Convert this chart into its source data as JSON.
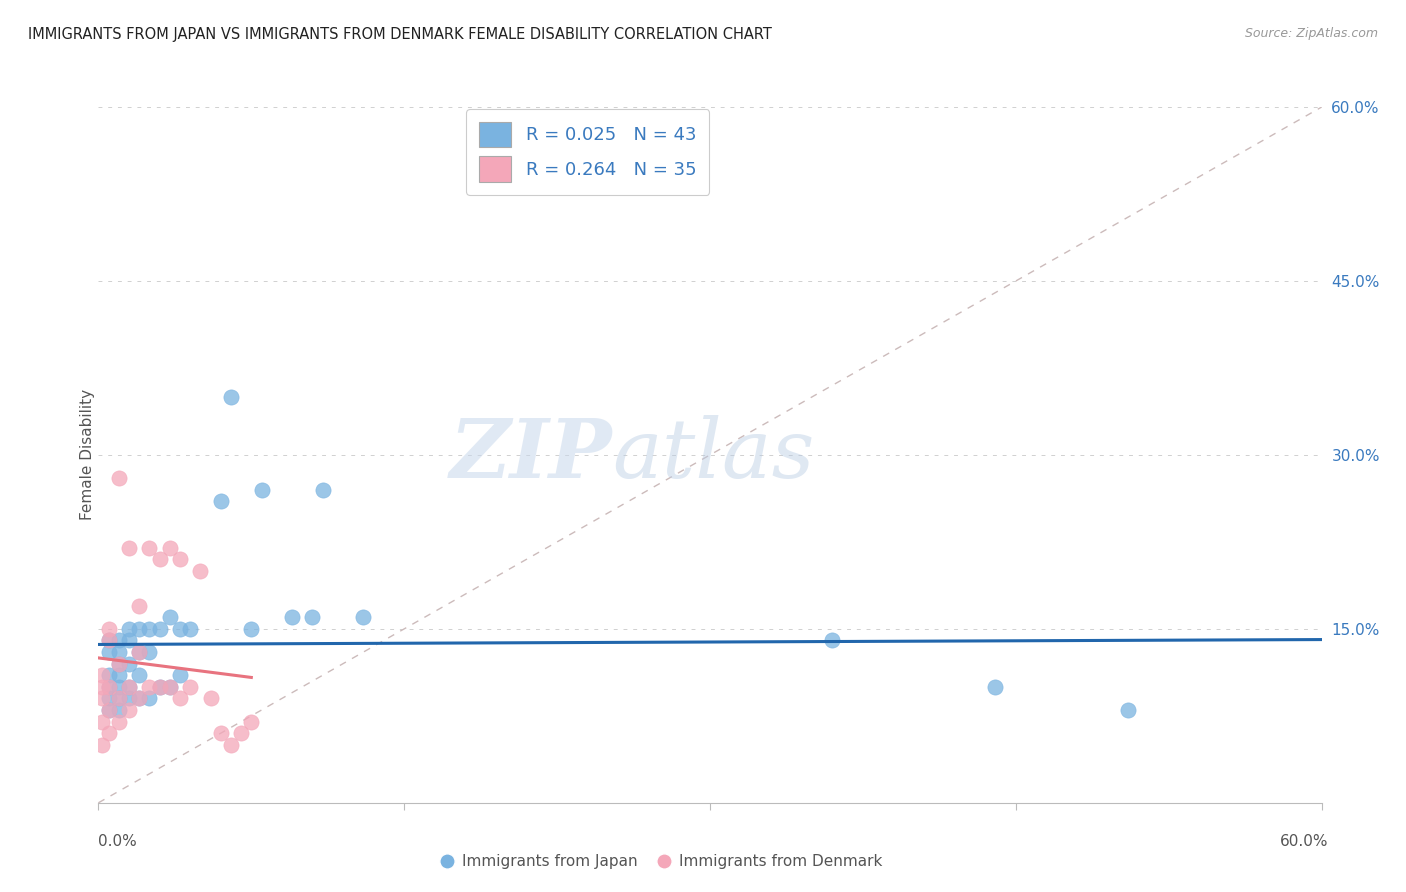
{
  "title": "IMMIGRANTS FROM JAPAN VS IMMIGRANTS FROM DENMARK FEMALE DISABILITY CORRELATION CHART",
  "source": "Source: ZipAtlas.com",
  "ylabel": "Female Disability",
  "xlim": [
    0,
    0.6
  ],
  "ylim": [
    0,
    0.6
  ],
  "yticks": [
    0.15,
    0.3,
    0.45,
    0.6
  ],
  "ytick_labels": [
    "15.0%",
    "30.0%",
    "45.0%",
    "60.0%"
  ],
  "japan_R": 0.025,
  "japan_N": 43,
  "denmark_R": 0.264,
  "denmark_N": 35,
  "japan_color": "#7ab3e0",
  "denmark_color": "#f4a7b9",
  "japan_line_color": "#2166ac",
  "denmark_line_color": "#e8737f",
  "diag_color": "#ccbbbb",
  "watermark_zip": "ZIP",
  "watermark_atlas": "atlas",
  "japan_x": [
    0.005,
    0.005,
    0.005,
    0.005,
    0.005,
    0.005,
    0.01,
    0.01,
    0.01,
    0.01,
    0.01,
    0.01,
    0.01,
    0.015,
    0.015,
    0.015,
    0.015,
    0.015,
    0.02,
    0.02,
    0.02,
    0.02,
    0.025,
    0.025,
    0.025,
    0.03,
    0.03,
    0.035,
    0.035,
    0.04,
    0.04,
    0.045,
    0.06,
    0.065,
    0.075,
    0.08,
    0.095,
    0.105,
    0.11,
    0.13,
    0.36,
    0.44,
    0.505
  ],
  "japan_y": [
    0.08,
    0.09,
    0.1,
    0.11,
    0.13,
    0.14,
    0.08,
    0.09,
    0.1,
    0.11,
    0.12,
    0.13,
    0.14,
    0.09,
    0.1,
    0.12,
    0.14,
    0.15,
    0.09,
    0.11,
    0.13,
    0.15,
    0.09,
    0.13,
    0.15,
    0.1,
    0.15,
    0.1,
    0.16,
    0.11,
    0.15,
    0.15,
    0.26,
    0.35,
    0.15,
    0.27,
    0.16,
    0.16,
    0.27,
    0.16,
    0.14,
    0.1,
    0.08
  ],
  "denmark_x": [
    0.002,
    0.002,
    0.002,
    0.002,
    0.002,
    0.005,
    0.005,
    0.005,
    0.005,
    0.005,
    0.01,
    0.01,
    0.01,
    0.01,
    0.015,
    0.015,
    0.015,
    0.02,
    0.02,
    0.02,
    0.025,
    0.025,
    0.03,
    0.03,
    0.035,
    0.035,
    0.04,
    0.04,
    0.045,
    0.05,
    0.055,
    0.06,
    0.065,
    0.07,
    0.075
  ],
  "denmark_y": [
    0.05,
    0.07,
    0.09,
    0.1,
    0.11,
    0.06,
    0.08,
    0.1,
    0.14,
    0.15,
    0.07,
    0.09,
    0.12,
    0.28,
    0.08,
    0.1,
    0.22,
    0.09,
    0.13,
    0.17,
    0.1,
    0.22,
    0.1,
    0.21,
    0.1,
    0.22,
    0.09,
    0.21,
    0.1,
    0.2,
    0.09,
    0.06,
    0.05,
    0.06,
    0.07
  ]
}
